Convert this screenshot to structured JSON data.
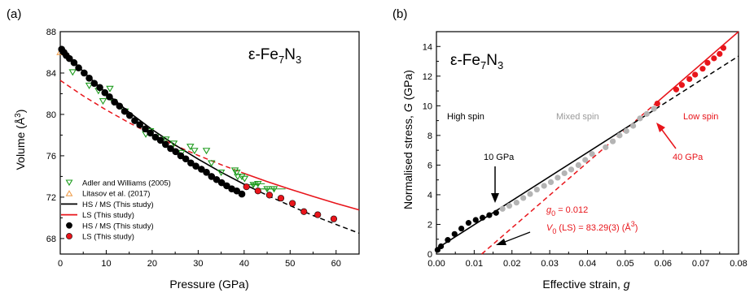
{
  "colors": {
    "black": "#000000",
    "red": "#e8151b",
    "grey": "#b4b4b4",
    "green": "#1e9c1e",
    "orange": "#f0a050"
  },
  "chart_data": [
    {
      "type": "scatter",
      "panel_label": "(a)",
      "title_main": "ε-Fe",
      "title_sub1": "7",
      "title_mid": "N",
      "title_sub2": "3",
      "xlabel": "Pressure (GPa)",
      "ylabel_main": "Volume (Å",
      "ylabel_sup": "3",
      "ylabel_end": ")",
      "xlim": [
        0,
        65
      ],
      "ylim": [
        66.5,
        88
      ],
      "xticks": [
        0,
        10,
        20,
        30,
        40,
        50,
        60
      ],
      "yticks": [
        68,
        72,
        76,
        80,
        84,
        88
      ],
      "grid": false,
      "legend_position": "bottom-left",
      "legend": [
        {
          "label": "Adler and Williams (2005)",
          "marker": "triangle-down-open",
          "color": "#1e9c1e"
        },
        {
          "label": "Litasov et al. (2017)",
          "marker": "triangle-up-open",
          "color": "#f0a050"
        },
        {
          "label": "HS / MS (This study)",
          "marker": "line-solid",
          "color": "#000000"
        },
        {
          "label": "LS (This study)",
          "marker": "line-solid",
          "color": "#e8151b"
        },
        {
          "label": "HS / MS (This study)",
          "marker": "circle-filled",
          "color": "#000000"
        },
        {
          "label": "LS (This study)",
          "marker": "circle-filled",
          "color": "#e8151b"
        }
      ],
      "series": [
        {
          "name": "HS / MS (This study)",
          "kind": "points",
          "x": [
            0.3,
            0.8,
            1.3,
            2.0,
            3.0,
            4.0,
            5.2,
            6.3,
            7.4,
            8.6,
            9.7,
            10.7,
            11.8,
            12.9,
            14.0,
            15.1,
            16.2,
            17.3,
            18.5,
            19.6,
            20.7,
            21.8,
            22.9,
            24.0,
            25.1,
            26.2,
            27.3,
            28.4,
            29.5,
            30.7,
            31.8,
            32.9,
            34.0,
            35.1,
            36.2,
            37.3,
            38.4,
            39.5
          ],
          "y": [
            86.3,
            86.0,
            85.7,
            85.4,
            85.0,
            84.5,
            84.0,
            83.5,
            83.0,
            82.6,
            82.1,
            81.7,
            81.2,
            80.8,
            80.3,
            79.9,
            79.4,
            79.0,
            78.6,
            78.2,
            77.8,
            77.5,
            77.1,
            76.7,
            76.4,
            76.0,
            75.7,
            75.3,
            75.0,
            74.7,
            74.4,
            74.0,
            73.7,
            73.4,
            73.1,
            72.8,
            72.6,
            72.3
          ]
        },
        {
          "name": "LS (This study)",
          "kind": "points",
          "x": [
            40.5,
            43.0,
            45.5,
            48.0,
            50.5,
            53.0,
            56.0,
            59.5
          ],
          "y": [
            73.0,
            72.6,
            72.2,
            71.9,
            71.4,
            70.6,
            70.3,
            69.9
          ]
        },
        {
          "name": "Adler and Williams (2005)",
          "kind": "points-errx",
          "x": [
            2.7,
            6.3,
            8.3,
            9.3,
            10.8,
            11.6,
            14.1,
            18.6,
            19.6,
            20.7,
            23.0,
            24.7,
            26.4,
            28.3,
            29.2,
            31.8,
            32.9,
            35.0,
            38.0,
            38.4,
            38.6,
            39.5,
            40.1,
            42.0,
            43.0,
            45.0,
            46.5
          ],
          "y": [
            84.1,
            82.8,
            82.3,
            81.3,
            82.5,
            81.2,
            80.3,
            78.1,
            78.4,
            77.8,
            77.6,
            77.2,
            76.3,
            76.9,
            76.5,
            76.5,
            75.3,
            74.4,
            74.6,
            74.4,
            74.0,
            74.0,
            73.8,
            73.2,
            73.3,
            72.8,
            72.8
          ],
          "xerr": [
            0,
            0,
            0,
            0,
            0,
            0,
            0,
            0,
            0,
            0,
            0,
            0,
            0,
            0,
            0,
            0,
            0,
            0,
            0,
            0,
            0,
            0,
            0,
            1.2,
            1.5,
            1.5,
            2.5
          ]
        },
        {
          "name": "Litasov et al. (2017)",
          "kind": "points",
          "x": [
            0.0
          ],
          "y": [
            86.0
          ]
        },
        {
          "name": "HS / MS fit",
          "kind": "line",
          "color": "#000000",
          "x": [
            0,
            5,
            10,
            15,
            20,
            25,
            30,
            35,
            40,
            45,
            50,
            55,
            60,
            65
          ],
          "y": [
            86.55,
            84.14,
            82.05,
            80.2,
            78.53,
            77.04,
            75.67,
            74.41,
            73.25,
            72.18,
            71.18,
            70.23,
            69.36,
            68.52
          ],
          "solid_until": 42
        },
        {
          "name": "LS fit",
          "kind": "line",
          "color": "#e8151b",
          "x": [
            0,
            5,
            10,
            15,
            20,
            25,
            30,
            35,
            40,
            45,
            50,
            55,
            60,
            65
          ],
          "y": [
            83.29,
            81.79,
            80.43,
            79.19,
            78.05,
            77.0,
            76.03,
            75.14,
            74.3,
            73.51,
            72.77,
            72.07,
            71.4,
            70.77
          ],
          "solid_from": 40
        }
      ]
    },
    {
      "type": "scatter",
      "panel_label": "(b)",
      "title_main": "ε-Fe",
      "title_sub1": "7",
      "title_mid": "N",
      "title_sub2": "3",
      "xlabel": "Effective strain, g",
      "ylabel": "Normalised stress, G (GPa)",
      "xlim": [
        0.0,
        0.08
      ],
      "ylim": [
        0,
        15
      ],
      "xticks": [
        "0.00",
        "0.01",
        "0.02",
        "0.03",
        "0.04",
        "0.05",
        "0.06",
        "0.07",
        "0.08"
      ],
      "yticks": [
        0,
        2,
        4,
        6,
        8,
        10,
        12,
        14
      ],
      "grid": false,
      "annotations": {
        "high_spin": "High spin",
        "mixed_spin": "Mixed spin",
        "low_spin": "Low spin",
        "p10": "10 GPa",
        "p40": "40 GPa",
        "g0_label": "g",
        "g0_sub": "0",
        "g0_value": " = 0.012",
        "v0_label": "V",
        "v0_sub": "0",
        "v0_value": " (LS) = 83.29(3) (Å",
        "v0_sup": "3",
        "v0_end": ")"
      },
      "series": [
        {
          "name": "High spin",
          "kind": "points",
          "color": "#000000",
          "x": [
            0.0003,
            0.0012,
            0.003,
            0.0048,
            0.0066,
            0.0085,
            0.0104,
            0.0122,
            0.014,
            0.0158
          ],
          "y": [
            0.28,
            0.52,
            0.95,
            1.35,
            1.72,
            2.1,
            2.3,
            2.45,
            2.62,
            2.78
          ]
        },
        {
          "name": "Mixed spin",
          "kind": "points",
          "color": "#b4b4b4",
          "x": [
            0.0175,
            0.0193,
            0.0212,
            0.023,
            0.0248,
            0.0266,
            0.0285,
            0.0303,
            0.0321,
            0.0339,
            0.0357,
            0.0376,
            0.0394,
            0.0412,
            0.0448,
            0.0467,
            0.0485,
            0.0503,
            0.0521,
            0.0539,
            0.0557,
            0.0576
          ],
          "y": [
            3.05,
            3.25,
            3.47,
            3.78,
            4.05,
            4.35,
            4.6,
            4.85,
            5.15,
            5.45,
            5.7,
            6.0,
            6.35,
            6.75,
            7.2,
            7.6,
            8.0,
            8.3,
            8.65,
            9.15,
            9.45,
            9.8
          ]
        },
        {
          "name": "Low spin",
          "kind": "points",
          "color": "#e8151b",
          "x": [
            0.0585,
            0.0635,
            0.065,
            0.067,
            0.0685,
            0.0705,
            0.0718,
            0.0735,
            0.075,
            0.076
          ],
          "y": [
            10.15,
            11.1,
            11.4,
            11.8,
            12.1,
            12.5,
            12.9,
            13.2,
            13.5,
            13.9
          ]
        },
        {
          "name": "HS fit",
          "kind": "line",
          "color": "#000000",
          "x": [
            0.0,
            0.08
          ],
          "y": [
            0.35,
            13.35
          ],
          "solid_until": 0.058
        },
        {
          "name": "LS fit",
          "kind": "line",
          "color": "#e8151b",
          "x": [
            0.012,
            0.08
          ],
          "y": [
            0,
            15.0
          ],
          "solid_from": 0.058
        }
      ]
    }
  ]
}
